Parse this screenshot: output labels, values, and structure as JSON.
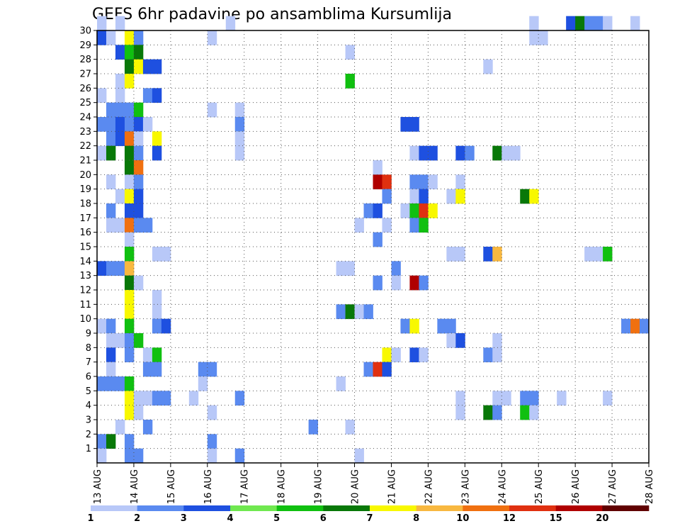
{
  "chart_data": {
    "type": "heatmap",
    "title": "GEFS 6hr padavine po ansamblima Kursumlija",
    "x_ticks": [
      "13 AUG",
      "14 AUG",
      "15 AUG",
      "16 AUG",
      "17 AUG",
      "18 AUG",
      "19 AUG",
      "20 AUG",
      "21 AUG",
      "22 AUG",
      "23 AUG",
      "24 AUG",
      "25 AUG",
      "26 AUG",
      "27 AUG",
      "28 AUG"
    ],
    "y_ticks": [
      "1",
      "2",
      "3",
      "4",
      "5",
      "6",
      "7",
      "8",
      "9",
      "10",
      "11",
      "12",
      "13",
      "14",
      "15",
      "16",
      "17",
      "18",
      "19",
      "20",
      "21",
      "22",
      "23",
      "24",
      "25",
      "26",
      "27",
      "28",
      "29",
      "30"
    ],
    "xlim": [
      0,
      60
    ],
    "ylim": [
      0,
      30
    ],
    "grid": true,
    "colorbar": {
      "labels": [
        "1",
        "2",
        "3",
        "4",
        "5",
        "6",
        "7",
        "8",
        "10",
        "12",
        "15",
        "20"
      ],
      "colors": [
        "#b8c8f8",
        "#5a8af0",
        "#1e50e0",
        "#70e850",
        "#10c010",
        "#087808",
        "#f8f800",
        "#f8b840",
        "#f07010",
        "#e03010",
        "#b00000",
        "#600000"
      ]
    },
    "cells": [
      [
        0,
        30,
        0
      ],
      [
        2,
        30,
        0
      ],
      [
        14,
        30,
        0
      ],
      [
        47,
        30,
        0
      ],
      [
        51,
        30,
        2
      ],
      [
        52,
        30,
        5
      ],
      [
        53,
        30,
        1
      ],
      [
        54,
        30,
        1
      ],
      [
        55,
        30,
        0
      ],
      [
        58,
        30,
        0
      ],
      [
        0,
        29,
        2
      ],
      [
        1,
        29,
        0
      ],
      [
        3,
        29,
        6
      ],
      [
        4,
        29,
        1
      ],
      [
        12,
        29,
        0
      ],
      [
        47,
        29,
        0
      ],
      [
        48,
        29,
        0
      ],
      [
        2,
        28,
        2
      ],
      [
        3,
        28,
        4
      ],
      [
        4,
        28,
        5
      ],
      [
        27,
        28,
        0
      ],
      [
        3,
        27,
        5
      ],
      [
        4,
        27,
        6
      ],
      [
        5,
        27,
        2
      ],
      [
        6,
        27,
        2
      ],
      [
        42,
        27,
        0
      ],
      [
        2,
        26,
        0
      ],
      [
        3,
        26,
        6
      ],
      [
        27,
        26,
        4
      ],
      [
        0,
        25,
        0
      ],
      [
        2,
        25,
        0
      ],
      [
        5,
        25,
        1
      ],
      [
        6,
        25,
        2
      ],
      [
        1,
        24,
        1
      ],
      [
        2,
        24,
        1
      ],
      [
        3,
        24,
        1
      ],
      [
        4,
        24,
        4
      ],
      [
        12,
        24,
        0
      ],
      [
        15,
        24,
        0
      ],
      [
        0,
        23,
        1
      ],
      [
        1,
        23,
        1
      ],
      [
        2,
        23,
        2
      ],
      [
        3,
        23,
        1
      ],
      [
        4,
        23,
        2
      ],
      [
        5,
        23,
        0
      ],
      [
        15,
        23,
        1
      ],
      [
        33,
        23,
        2
      ],
      [
        34,
        23,
        2
      ],
      [
        1,
        22,
        1
      ],
      [
        2,
        22,
        2
      ],
      [
        3,
        22,
        8
      ],
      [
        4,
        22,
        0
      ],
      [
        6,
        22,
        6
      ],
      [
        15,
        22,
        0
      ],
      [
        0,
        21,
        0
      ],
      [
        1,
        21,
        5
      ],
      [
        3,
        21,
        5
      ],
      [
        4,
        21,
        1
      ],
      [
        6,
        21,
        2
      ],
      [
        15,
        21,
        0
      ],
      [
        34,
        21,
        0
      ],
      [
        35,
        21,
        2
      ],
      [
        36,
        21,
        2
      ],
      [
        39,
        21,
        2
      ],
      [
        40,
        21,
        1
      ],
      [
        43,
        21,
        5
      ],
      [
        44,
        21,
        0
      ],
      [
        45,
        21,
        0
      ],
      [
        3,
        20,
        5
      ],
      [
        4,
        20,
        8
      ],
      [
        30,
        20,
        0
      ],
      [
        1,
        19,
        0
      ],
      [
        3,
        19,
        0
      ],
      [
        4,
        19,
        1
      ],
      [
        30,
        19,
        10
      ],
      [
        31,
        19,
        9
      ],
      [
        34,
        19,
        1
      ],
      [
        35,
        19,
        1
      ],
      [
        36,
        19,
        0
      ],
      [
        39,
        19,
        0
      ],
      [
        2,
        18,
        0
      ],
      [
        3,
        18,
        6
      ],
      [
        4,
        18,
        2
      ],
      [
        31,
        18,
        1
      ],
      [
        34,
        18,
        0
      ],
      [
        35,
        18,
        2
      ],
      [
        38,
        18,
        0
      ],
      [
        39,
        18,
        6
      ],
      [
        46,
        18,
        5
      ],
      [
        47,
        18,
        6
      ],
      [
        1,
        17,
        1
      ],
      [
        3,
        17,
        2
      ],
      [
        4,
        17,
        2
      ],
      [
        29,
        17,
        1
      ],
      [
        30,
        17,
        2
      ],
      [
        33,
        17,
        0
      ],
      [
        34,
        17,
        4
      ],
      [
        35,
        17,
        9
      ],
      [
        36,
        17,
        6
      ],
      [
        1,
        16,
        0
      ],
      [
        2,
        16,
        0
      ],
      [
        3,
        16,
        8
      ],
      [
        4,
        16,
        1
      ],
      [
        5,
        16,
        1
      ],
      [
        28,
        16,
        0
      ],
      [
        31,
        16,
        0
      ],
      [
        34,
        16,
        1
      ],
      [
        35,
        16,
        4
      ],
      [
        3,
        15,
        0
      ],
      [
        30,
        15,
        1
      ],
      [
        3,
        14,
        4
      ],
      [
        6,
        14,
        0
      ],
      [
        7,
        14,
        0
      ],
      [
        38,
        14,
        0
      ],
      [
        39,
        14,
        0
      ],
      [
        42,
        14,
        2
      ],
      [
        43,
        14,
        7
      ],
      [
        53,
        14,
        0
      ],
      [
        54,
        14,
        0
      ],
      [
        55,
        14,
        4
      ],
      [
        0,
        13,
        2
      ],
      [
        1,
        13,
        1
      ],
      [
        2,
        13,
        1
      ],
      [
        3,
        13,
        7
      ],
      [
        26,
        13,
        0
      ],
      [
        27,
        13,
        0
      ],
      [
        32,
        13,
        1
      ],
      [
        3,
        12,
        5
      ],
      [
        4,
        12,
        0
      ],
      [
        30,
        12,
        1
      ],
      [
        32,
        12,
        0
      ],
      [
        34,
        12,
        10
      ],
      [
        35,
        12,
        1
      ],
      [
        3,
        11,
        6
      ],
      [
        6,
        11,
        0
      ],
      [
        3,
        10,
        6
      ],
      [
        6,
        10,
        0
      ],
      [
        26,
        10,
        1
      ],
      [
        27,
        10,
        5
      ],
      [
        28,
        10,
        0
      ],
      [
        29,
        10,
        1
      ],
      [
        0,
        9,
        0
      ],
      [
        1,
        9,
        1
      ],
      [
        3,
        9,
        4
      ],
      [
        6,
        9,
        1
      ],
      [
        7,
        9,
        2
      ],
      [
        33,
        9,
        1
      ],
      [
        34,
        9,
        6
      ],
      [
        37,
        9,
        1
      ],
      [
        38,
        9,
        1
      ],
      [
        57,
        9,
        1
      ],
      [
        58,
        9,
        8
      ],
      [
        59,
        9,
        1
      ],
      [
        1,
        8,
        0
      ],
      [
        2,
        8,
        0
      ],
      [
        3,
        8,
        1
      ],
      [
        4,
        8,
        4
      ],
      [
        38,
        8,
        0
      ],
      [
        39,
        8,
        2
      ],
      [
        43,
        8,
        0
      ],
      [
        1,
        7,
        2
      ],
      [
        3,
        7,
        1
      ],
      [
        5,
        7,
        0
      ],
      [
        6,
        7,
        4
      ],
      [
        31,
        7,
        6
      ],
      [
        32,
        7,
        0
      ],
      [
        34,
        7,
        2
      ],
      [
        35,
        7,
        0
      ],
      [
        42,
        7,
        1
      ],
      [
        43,
        7,
        0
      ],
      [
        1,
        6,
        0
      ],
      [
        5,
        6,
        1
      ],
      [
        6,
        6,
        1
      ],
      [
        11,
        6,
        1
      ],
      [
        12,
        6,
        1
      ],
      [
        29,
        6,
        1
      ],
      [
        30,
        6,
        9
      ],
      [
        31,
        6,
        2
      ],
      [
        0,
        5,
        1
      ],
      [
        1,
        5,
        1
      ],
      [
        2,
        5,
        1
      ],
      [
        3,
        5,
        4
      ],
      [
        11,
        5,
        0
      ],
      [
        26,
        5,
        0
      ],
      [
        3,
        4,
        6
      ],
      [
        4,
        4,
        0
      ],
      [
        5,
        4,
        0
      ],
      [
        6,
        4,
        1
      ],
      [
        7,
        4,
        1
      ],
      [
        10,
        4,
        0
      ],
      [
        15,
        4,
        1
      ],
      [
        39,
        4,
        0
      ],
      [
        43,
        4,
        0
      ],
      [
        44,
        4,
        0
      ],
      [
        46,
        4,
        1
      ],
      [
        47,
        4,
        1
      ],
      [
        50,
        4,
        0
      ],
      [
        55,
        4,
        0
      ],
      [
        3,
        3,
        6
      ],
      [
        4,
        3,
        0
      ],
      [
        12,
        3,
        0
      ],
      [
        39,
        3,
        0
      ],
      [
        42,
        3,
        5
      ],
      [
        43,
        3,
        1
      ],
      [
        46,
        3,
        4
      ],
      [
        47,
        3,
        0
      ],
      [
        2,
        2,
        0
      ],
      [
        5,
        2,
        1
      ],
      [
        23,
        2,
        1
      ],
      [
        27,
        2,
        0
      ],
      [
        0,
        1,
        1
      ],
      [
        1,
        1,
        5
      ],
      [
        3,
        1,
        1
      ],
      [
        12,
        1,
        1
      ],
      [
        0,
        0,
        0
      ],
      [
        3,
        0,
        1
      ],
      [
        4,
        0,
        1
      ],
      [
        12,
        0,
        0
      ],
      [
        15,
        0,
        1
      ],
      [
        28,
        0,
        0
      ]
    ]
  }
}
